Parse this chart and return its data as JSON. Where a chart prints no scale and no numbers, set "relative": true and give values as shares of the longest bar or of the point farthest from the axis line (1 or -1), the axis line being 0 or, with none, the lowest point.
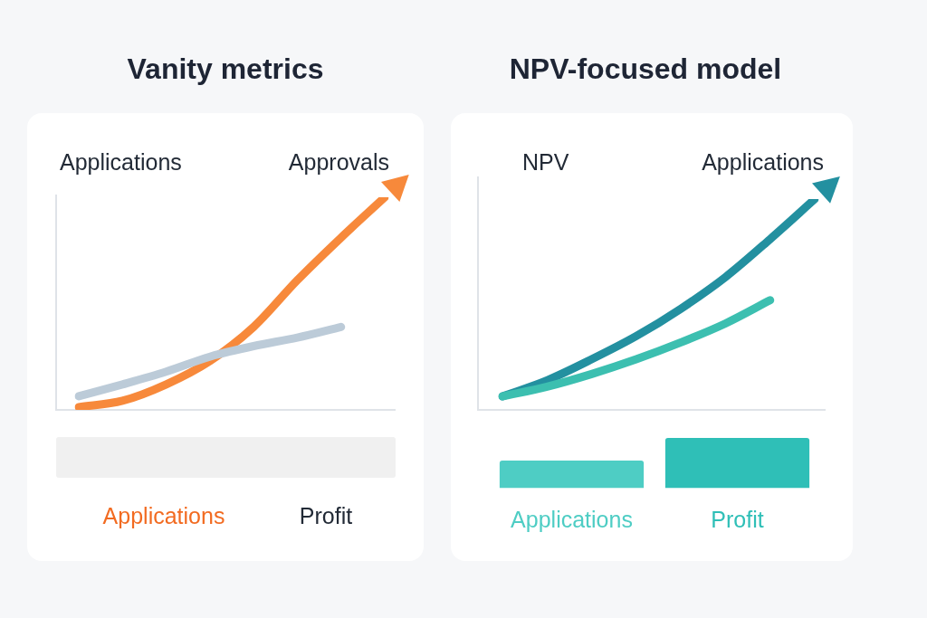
{
  "chart_data": [
    {
      "type": "line",
      "title": "Vanity metrics",
      "annotations": [
        "Applications",
        "Approvals"
      ],
      "relative": true,
      "tick_labels": false,
      "grid": false,
      "legend": false,
      "marker": "none",
      "categories": [
        null,
        null,
        null,
        null,
        null,
        null,
        null,
        null
      ],
      "series": [
        {
          "color": "#bccbd8",
          "values": [
            0.064,
            0.12,
            0.18,
            0.25,
            0.3,
            0.34,
            0.39,
            null
          ]
        },
        {
          "color": "#f7893b",
          "values": [
            0.013,
            0.043,
            0.12,
            0.23,
            0.39,
            0.61,
            0.81,
            1
          ]
        }
      ]
    },
    {
      "type": "other",
      "annotations": [
        "Applications",
        "Profit"
      ]
    },
    {
      "type": "line",
      "title": "NPV-focused model",
      "annotations": [
        "NPV",
        "Applications"
      ],
      "relative": true,
      "tick_labels": false,
      "grid": false,
      "legend": false,
      "marker": "none",
      "categories": [
        null,
        null,
        null,
        null,
        null,
        null,
        null,
        null
      ],
      "series": [
        {
          "color": "#3cbfb0",
          "values": [
            0.064,
            0.11,
            0.17,
            0.24,
            0.32,
            0.41,
            0.52,
            null
          ]
        },
        {
          "color": "#2390a0",
          "values": [
            0.064,
            0.14,
            0.24,
            0.35,
            0.48,
            0.63,
            0.81,
            1
          ]
        }
      ]
    },
    {
      "type": "bar",
      "relative": true,
      "categories": [
        "Applications",
        "Profit"
      ],
      "values": [
        0.55,
        1
      ],
      "colors": [
        "#4ecdc4",
        "#2fbfb7"
      ],
      "tick_labels": "x",
      "grid": false,
      "legend": false
    }
  ]
}
